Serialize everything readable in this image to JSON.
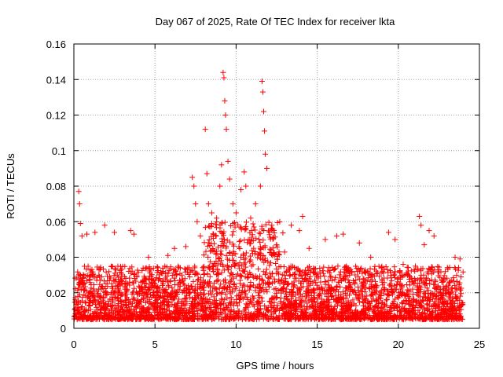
{
  "chart_data": {
    "type": "scatter",
    "title": "Day 067 of 2025, Rate Of TEC Index for receiver lkta",
    "xlabel": "GPS time / hours",
    "ylabel": "ROTI / TECUs",
    "xlim": [
      0,
      25
    ],
    "ylim": [
      0,
      0.16
    ],
    "x_ticks": [
      0,
      5,
      10,
      15,
      20,
      25
    ],
    "x_tick_labels": [
      "0",
      "5",
      "10",
      "15",
      "20",
      "25"
    ],
    "y_ticks": [
      0,
      0.02,
      0.04,
      0.06,
      0.08,
      0.1,
      0.12,
      0.14,
      0.16
    ],
    "y_tick_labels": [
      "0",
      "0.02",
      "0.04",
      "0.06",
      "0.08",
      "0.1",
      "0.12",
      "0.14",
      "0.16"
    ],
    "grid": true,
    "marker": "+",
    "color": "#ff0000",
    "series": [
      {
        "name": "ROTI",
        "baseline_band": [
          {
            "hour_range": [
              0,
              8
            ],
            "typical_range": [
              0.005,
              0.035
            ]
          },
          {
            "hour_range": [
              8,
              13
            ],
            "typical_range": [
              0.005,
              0.06
            ]
          },
          {
            "hour_range": [
              13,
              24
            ],
            "typical_range": [
              0.005,
              0.035
            ]
          }
        ],
        "points": [
          [
            0.3,
            0.077
          ],
          [
            0.35,
            0.07
          ],
          [
            0.4,
            0.059
          ],
          [
            0.5,
            0.052
          ],
          [
            0.8,
            0.053
          ],
          [
            1.3,
            0.054
          ],
          [
            1.9,
            0.058
          ],
          [
            2.5,
            0.054
          ],
          [
            3.5,
            0.055
          ],
          [
            3.7,
            0.053
          ],
          [
            4.6,
            0.04
          ],
          [
            5.8,
            0.041
          ],
          [
            6.2,
            0.045
          ],
          [
            6.9,
            0.046
          ],
          [
            7.3,
            0.085
          ],
          [
            7.4,
            0.08
          ],
          [
            7.5,
            0.07
          ],
          [
            7.6,
            0.06
          ],
          [
            7.8,
            0.052
          ],
          [
            8.1,
            0.112
          ],
          [
            8.2,
            0.087
          ],
          [
            8.3,
            0.07
          ],
          [
            8.5,
            0.065
          ],
          [
            8.8,
            0.062
          ],
          [
            9.0,
            0.08
          ],
          [
            9.1,
            0.092
          ],
          [
            9.2,
            0.144
          ],
          [
            9.25,
            0.141
          ],
          [
            9.3,
            0.128
          ],
          [
            9.35,
            0.12
          ],
          [
            9.4,
            0.112
          ],
          [
            9.5,
            0.094
          ],
          [
            9.6,
            0.084
          ],
          [
            9.8,
            0.07
          ],
          [
            10.0,
            0.065
          ],
          [
            10.3,
            0.078
          ],
          [
            10.5,
            0.088
          ],
          [
            10.6,
            0.08
          ],
          [
            10.9,
            0.062
          ],
          [
            11.2,
            0.07
          ],
          [
            11.5,
            0.08
          ],
          [
            11.6,
            0.139
          ],
          [
            11.65,
            0.133
          ],
          [
            11.7,
            0.122
          ],
          [
            11.75,
            0.111
          ],
          [
            11.8,
            0.098
          ],
          [
            11.9,
            0.09
          ],
          [
            12.2,
            0.058
          ],
          [
            13.4,
            0.058
          ],
          [
            13.9,
            0.055
          ],
          [
            14.1,
            0.063
          ],
          [
            14.5,
            0.045
          ],
          [
            15.5,
            0.05
          ],
          [
            16.2,
            0.052
          ],
          [
            16.6,
            0.053
          ],
          [
            17.6,
            0.048
          ],
          [
            18.3,
            0.04
          ],
          [
            19.4,
            0.054
          ],
          [
            19.8,
            0.05
          ],
          [
            20.3,
            0.036
          ],
          [
            21.3,
            0.063
          ],
          [
            21.4,
            0.058
          ],
          [
            21.6,
            0.047
          ],
          [
            21.9,
            0.055
          ],
          [
            22.2,
            0.052
          ],
          [
            23.5,
            0.04
          ],
          [
            23.8,
            0.039
          ]
        ]
      }
    ]
  }
}
